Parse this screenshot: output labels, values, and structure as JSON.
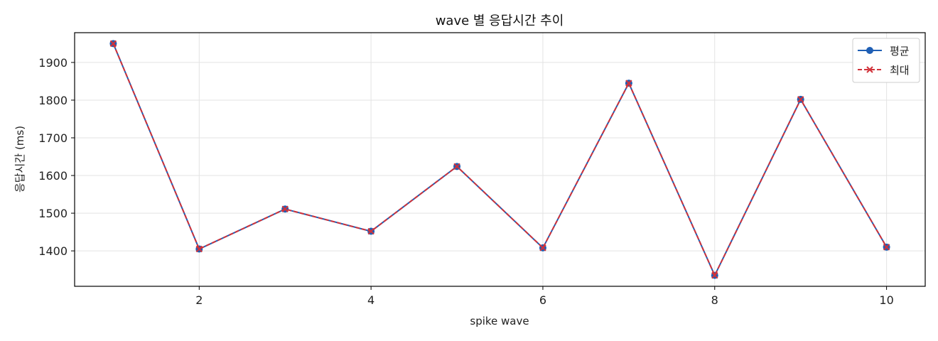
{
  "chart_data": {
    "type": "line",
    "title": "wave 별 응답시간 추이",
    "xlabel": "spike wave",
    "ylabel": "응답시간 (ms)",
    "x": [
      1,
      2,
      3,
      4,
      5,
      6,
      7,
      8,
      9,
      10
    ],
    "xlim": [
      0.55,
      10.45
    ],
    "ylim": [
      1306,
      1979
    ],
    "xticks": [
      2,
      4,
      6,
      8,
      10
    ],
    "yticks": [
      1400,
      1500,
      1600,
      1700,
      1800,
      1900
    ],
    "grid": true,
    "legend_position": "top-right",
    "series": [
      {
        "name": "평균",
        "values": [
          1950,
          1405,
          1511,
          1452,
          1624,
          1408,
          1845,
          1335,
          1802,
          1410
        ],
        "color": "#1f5fb5",
        "line_style": "solid",
        "marker": "circle"
      },
      {
        "name": "최대",
        "values": [
          1950,
          1405,
          1511,
          1452,
          1624,
          1408,
          1845,
          1335,
          1802,
          1410
        ],
        "color": "#d1323a",
        "line_style": "dashed",
        "marker": "x"
      }
    ]
  }
}
